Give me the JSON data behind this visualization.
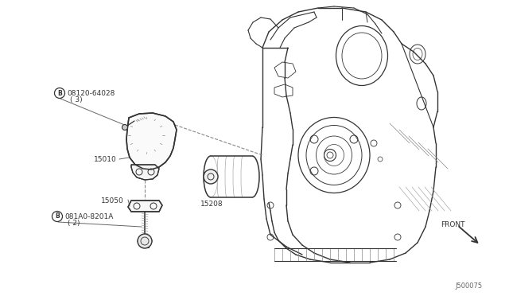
{
  "bg_color": "#ffffff",
  "line_color": "#333333",
  "text_color": "#333333",
  "diagram_id": "J500075",
  "labels": {
    "part_b1_num": "08120-64028",
    "part_b1_qty": "( 3)",
    "part_15010": "15010",
    "part_15050": "15050",
    "part_b2_num": "081A0-8201A",
    "part_b2_qty": "( 2)",
    "part_15208": "15208",
    "front_label": "FRONT"
  }
}
